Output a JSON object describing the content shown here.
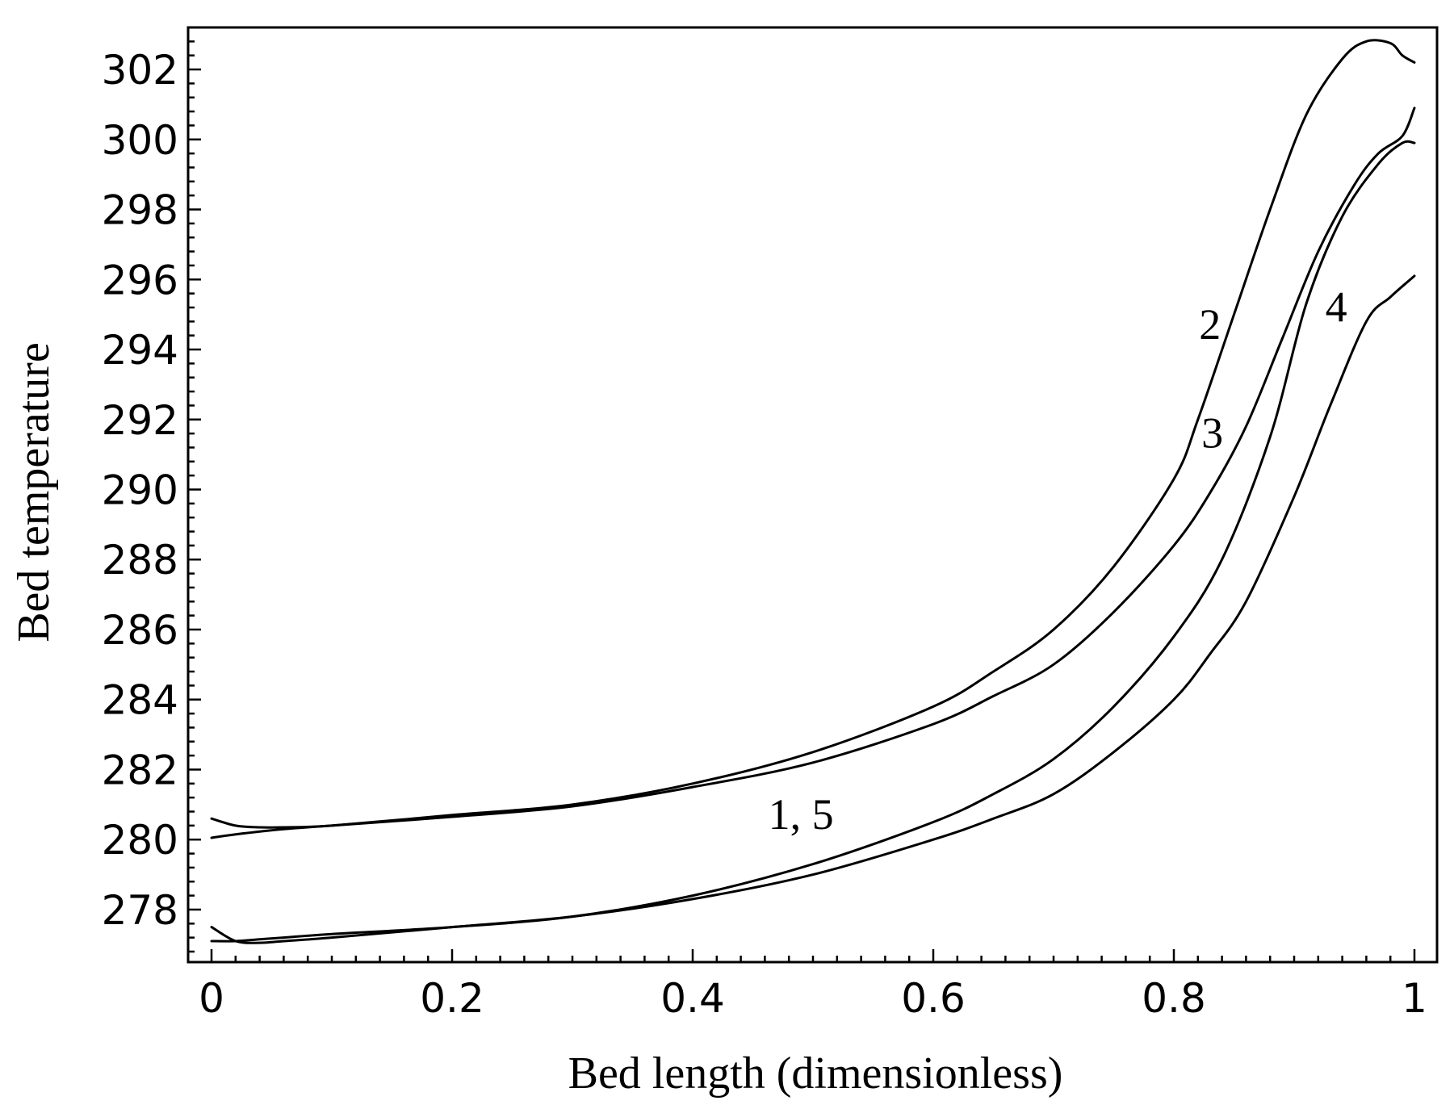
{
  "chart_data": {
    "type": "line",
    "xlabel": "Bed length (dimensionless)",
    "ylabel": "Bed temperature",
    "xlim": [
      0,
      1
    ],
    "ylim": [
      276.5,
      303.2
    ],
    "xticks": [
      0,
      0.2,
      0.4,
      0.6,
      0.8,
      1
    ],
    "xtick_labels": [
      "0",
      "0.2",
      "0.4",
      "0.6",
      "0.8",
      "1"
    ],
    "yticks": [
      278,
      280,
      282,
      284,
      286,
      288,
      290,
      292,
      294,
      296,
      298,
      300,
      302
    ],
    "ytick_labels": [
      "278",
      "280",
      "282",
      "284",
      "286",
      "288",
      "290",
      "292",
      "294",
      "296",
      "298",
      "300",
      "302"
    ],
    "grid": false,
    "legend": "none",
    "annotations": [
      {
        "text": "2",
        "x": 0.83,
        "y": 294.3
      },
      {
        "text": "3",
        "x": 0.832,
        "y": 291.2
      },
      {
        "text": "4",
        "x": 0.935,
        "y": 294.8
      },
      {
        "text": "1, 5",
        "x": 0.49,
        "y": 280.3
      }
    ],
    "series": [
      {
        "x": [
          0,
          0.02,
          0.04,
          0.06,
          0.1,
          0.2,
          0.3,
          0.4,
          0.5,
          0.6,
          0.65,
          0.7,
          0.75,
          0.8,
          0.83,
          0.86,
          0.9,
          0.93,
          0.96,
          0.98,
          1.0
        ],
        "y": [
          277.5,
          277.1,
          277.05,
          277.1,
          277.2,
          277.5,
          277.8,
          278.3,
          279.0,
          280.0,
          280.6,
          281.3,
          282.5,
          284.0,
          285.3,
          286.8,
          289.8,
          292.4,
          294.8,
          295.5,
          296.1
        ]
      },
      {
        "x": [
          0,
          0.02,
          0.04,
          0.06,
          0.1,
          0.2,
          0.3,
          0.4,
          0.5,
          0.6,
          0.65,
          0.7,
          0.75,
          0.8,
          0.82,
          0.85,
          0.88,
          0.91,
          0.94,
          0.96,
          0.98,
          0.99,
          1.0
        ],
        "y": [
          280.6,
          280.4,
          280.35,
          280.35,
          280.4,
          280.7,
          281.0,
          281.6,
          282.5,
          283.8,
          284.8,
          286.0,
          287.8,
          290.3,
          292.0,
          295.0,
          298.0,
          300.7,
          302.3,
          302.8,
          302.75,
          302.4,
          302.2
        ]
      },
      {
        "x": [
          0,
          0.02,
          0.06,
          0.1,
          0.2,
          0.3,
          0.4,
          0.5,
          0.6,
          0.65,
          0.7,
          0.75,
          0.8,
          0.83,
          0.86,
          0.89,
          0.92,
          0.95,
          0.97,
          0.99,
          1.0
        ],
        "y": [
          280.05,
          280.15,
          280.3,
          280.4,
          280.65,
          280.95,
          281.5,
          282.2,
          283.3,
          284.1,
          285.0,
          286.5,
          288.4,
          289.9,
          291.8,
          294.3,
          296.8,
          298.7,
          299.6,
          300.1,
          300.9
        ]
      },
      {
        "x": [
          0,
          0.02,
          0.04,
          0.06,
          0.1,
          0.2,
          0.3,
          0.4,
          0.5,
          0.6,
          0.65,
          0.7,
          0.75,
          0.8,
          0.84,
          0.88,
          0.91,
          0.94,
          0.97,
          0.99,
          1.0
        ],
        "y": [
          277.1,
          277.1,
          277.15,
          277.2,
          277.3,
          277.5,
          277.8,
          278.4,
          279.3,
          280.5,
          281.3,
          282.3,
          283.8,
          285.8,
          288.0,
          291.5,
          295.3,
          297.8,
          299.3,
          299.9,
          299.9
        ]
      }
    ]
  }
}
